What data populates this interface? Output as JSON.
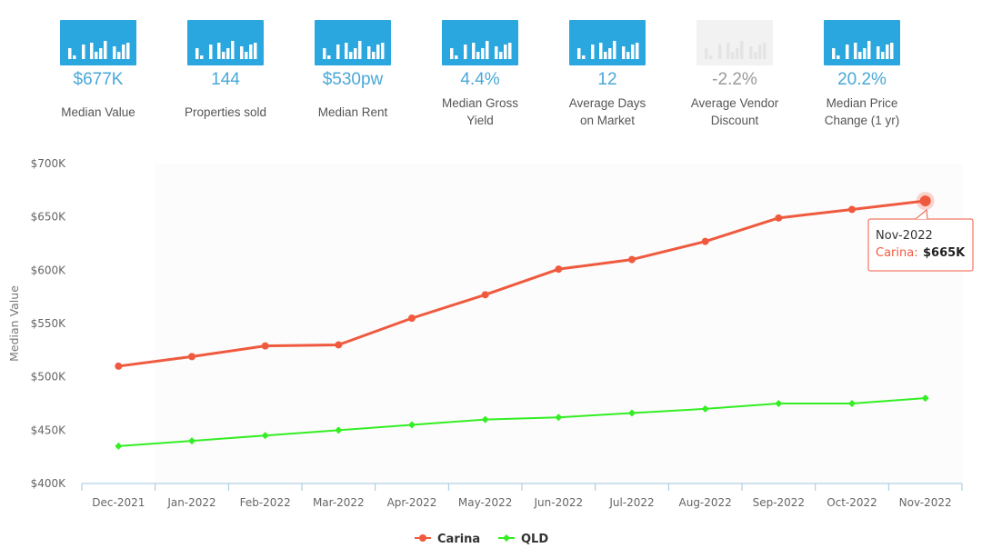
{
  "stats": [
    {
      "value": "$677K",
      "label": "Median Value",
      "muted": false
    },
    {
      "value": "144",
      "label": "Properties sold",
      "muted": false
    },
    {
      "value": "$530pw",
      "label": "Median Rent",
      "muted": false
    },
    {
      "value": "4.4%",
      "label": "Median Gross\nYield",
      "muted": false
    },
    {
      "value": "12",
      "label": "Average Days\non Market",
      "muted": false
    },
    {
      "value": "-2.2%",
      "label": "Average Vendor\nDiscount",
      "muted": true
    },
    {
      "value": "20.2%",
      "label": "Median Price\nChange (1 yr)",
      "muted": false
    }
  ],
  "colors": {
    "carina": "#ef5a3f",
    "qld": "#33ee22",
    "accent": "#2aa7df"
  },
  "chart_data": {
    "type": "line",
    "title": "",
    "xlabel": "",
    "ylabel": "Median Value",
    "categories": [
      "Dec-2021",
      "Jan-2022",
      "Feb-2022",
      "Mar-2022",
      "Apr-2022",
      "May-2022",
      "Jun-2022",
      "Jul-2022",
      "Aug-2022",
      "Sep-2022",
      "Oct-2022",
      "Nov-2022"
    ],
    "ylim": [
      400000,
      700000
    ],
    "yticks": [
      400000,
      450000,
      500000,
      550000,
      600000,
      650000,
      700000
    ],
    "ytick_labels": [
      "$400K",
      "$450K",
      "$500K",
      "$550K",
      "$600K",
      "$650K",
      "$700K"
    ],
    "series": [
      {
        "name": "Carina",
        "marker": "circle",
        "values": [
          510000,
          519000,
          529000,
          530000,
          555000,
          577000,
          601000,
          610000,
          627000,
          649000,
          657000,
          665000
        ]
      },
      {
        "name": "QLD",
        "marker": "diamond",
        "values": [
          435000,
          440000,
          445000,
          450000,
          455000,
          460000,
          462000,
          466000,
          470000,
          475000,
          475000,
          480000
        ]
      }
    ],
    "legend": "bottom-center",
    "tooltip": {
      "title": "Nov-2022",
      "series": "Carina:",
      "value": "$665K"
    }
  }
}
